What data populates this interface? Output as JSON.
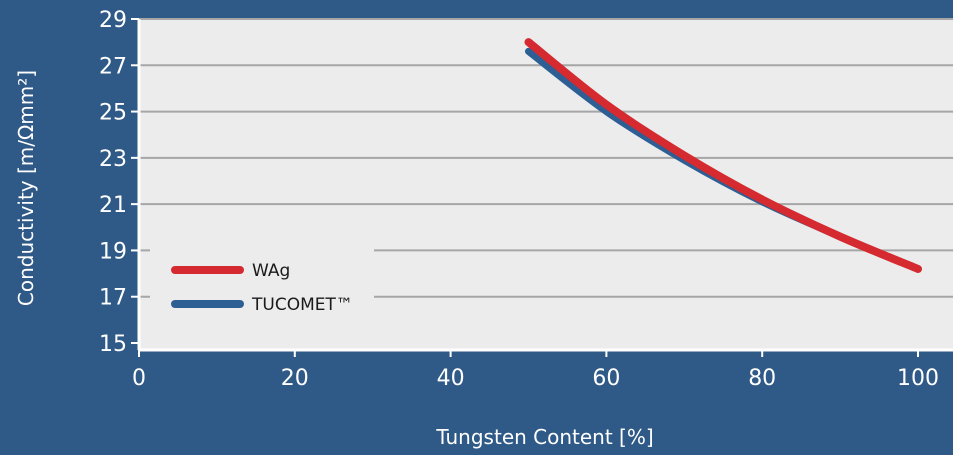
{
  "chart_data": {
    "type": "line",
    "title": "",
    "xlabel": "Tungsten Content [%]",
    "ylabel": "Conductivity [m/Ωmm²]",
    "xlim": [
      0,
      100
    ],
    "ylim": [
      15,
      29
    ],
    "xticks": [
      0,
      20,
      40,
      60,
      80,
      100
    ],
    "yticks": [
      15,
      17,
      19,
      21,
      23,
      25,
      27,
      29
    ],
    "grid": "horizontal",
    "legend_position": "bottom-left",
    "series": [
      {
        "name": "WAg",
        "color": "#d42a30",
        "x": [
          50,
          60,
          70,
          80,
          90,
          100
        ],
        "y": [
          28.0,
          25.3,
          23.1,
          21.2,
          19.6,
          18.2
        ]
      },
      {
        "name": "TUCOMET™",
        "color": "#2e5f94",
        "x": [
          50,
          60,
          70,
          80,
          90,
          100
        ],
        "y": [
          27.6,
          25.0,
          22.9,
          21.1,
          19.6,
          18.2
        ]
      }
    ]
  }
}
